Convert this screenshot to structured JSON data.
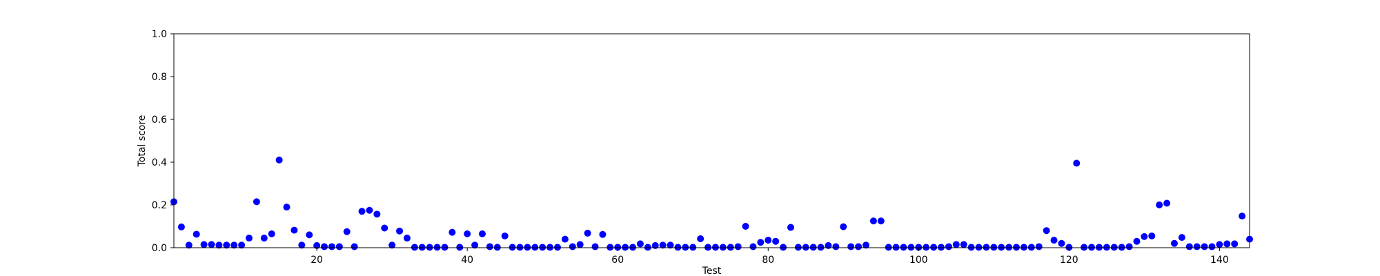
{
  "chart_data": {
    "type": "scatter",
    "title": "",
    "xlabel": "Test",
    "ylabel": "Total score",
    "xlim": [
      1,
      144
    ],
    "ylim": [
      0.0,
      1.0
    ],
    "x_ticks": [
      20,
      40,
      60,
      80,
      100,
      120,
      140
    ],
    "x_tick_labels": [
      "20",
      "40",
      "60",
      "80",
      "100",
      "120",
      "140"
    ],
    "y_ticks": [
      0.0,
      0.2,
      0.4,
      0.6,
      0.8,
      1.0
    ],
    "y_tick_labels": [
      "0.0",
      "0.2",
      "0.4",
      "0.6",
      "0.8",
      "1.0"
    ],
    "grid": false,
    "marker_color": "#0000ff",
    "series": [
      {
        "x": [
          1,
          2,
          3,
          4,
          5,
          6,
          7,
          8,
          9,
          10,
          11,
          12,
          13,
          14,
          15,
          16,
          17,
          18,
          19,
          20,
          21,
          22,
          23,
          24,
          25,
          26,
          27,
          28,
          29,
          30,
          31,
          32,
          33,
          34,
          35,
          36,
          37,
          38,
          39,
          40,
          41,
          42,
          43,
          44,
          45,
          46,
          47,
          48,
          49,
          50,
          51,
          52,
          53,
          54,
          55,
          56,
          57,
          58,
          59,
          60,
          61,
          62,
          63,
          64,
          65,
          66,
          67,
          68,
          69,
          70,
          71,
          72,
          73,
          74,
          75,
          76,
          77,
          78,
          79,
          80,
          81,
          82,
          83,
          84,
          85,
          86,
          87,
          88,
          89,
          90,
          91,
          92,
          93,
          94,
          95,
          96,
          97,
          98,
          99,
          100,
          101,
          102,
          103,
          104,
          105,
          106,
          107,
          108,
          109,
          110,
          111,
          112,
          113,
          114,
          115,
          116,
          117,
          118,
          119,
          120,
          121,
          122,
          123,
          124,
          125,
          126,
          127,
          128,
          129,
          130,
          131,
          132,
          133,
          134,
          135,
          136,
          137,
          138,
          139,
          140,
          141,
          142,
          143,
          144
        ],
        "y": [
          0.215,
          0.097,
          0.012,
          0.063,
          0.015,
          0.015,
          0.012,
          0.012,
          0.012,
          0.012,
          0.045,
          0.215,
          0.045,
          0.065,
          0.41,
          0.19,
          0.082,
          0.012,
          0.06,
          0.01,
          0.005,
          0.005,
          0.005,
          0.075,
          0.005,
          0.17,
          0.175,
          0.157,
          0.092,
          0.012,
          0.078,
          0.045,
          0.002,
          0.002,
          0.002,
          0.002,
          0.002,
          0.072,
          0.002,
          0.065,
          0.012,
          0.065,
          0.005,
          0.002,
          0.055,
          0.002,
          0.002,
          0.002,
          0.002,
          0.002,
          0.002,
          0.002,
          0.04,
          0.005,
          0.015,
          0.068,
          0.005,
          0.062,
          0.002,
          0.002,
          0.002,
          0.002,
          0.018,
          0.002,
          0.01,
          0.012,
          0.012,
          0.002,
          0.002,
          0.002,
          0.042,
          0.002,
          0.002,
          0.002,
          0.002,
          0.005,
          0.1,
          0.005,
          0.025,
          0.035,
          0.03,
          0.002,
          0.095,
          0.002,
          0.002,
          0.002,
          0.002,
          0.01,
          0.005,
          0.098,
          0.005,
          0.005,
          0.012,
          0.125,
          0.125,
          0.002,
          0.002,
          0.002,
          0.002,
          0.002,
          0.002,
          0.002,
          0.002,
          0.005,
          0.015,
          0.015,
          0.002,
          0.002,
          0.002,
          0.002,
          0.002,
          0.002,
          0.002,
          0.002,
          0.002,
          0.005,
          0.08,
          0.035,
          0.02,
          0.002,
          0.395,
          0.002,
          0.002,
          0.002,
          0.002,
          0.002,
          0.002,
          0.005,
          0.03,
          0.052,
          0.055,
          0.2,
          0.208,
          0.02,
          0.048,
          0.005,
          0.005,
          0.005,
          0.005,
          0.015,
          0.018,
          0.018,
          0.148,
          0.04
        ]
      }
    ]
  }
}
